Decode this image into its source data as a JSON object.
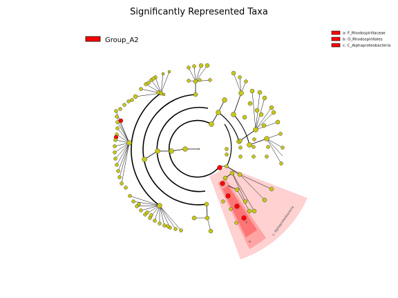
{
  "title": "Significantly Represented Taxa",
  "legend": {
    "group_label": "Group_A2",
    "group_color": "#ff0000"
  },
  "highlight_key": [
    {
      "letter": "a",
      "text": "a: F_Rhodospirillaceae"
    },
    {
      "letter": "b",
      "text": "b: O_Rhodospirillales"
    },
    {
      "letter": "c",
      "text": "c: C_Alphaproteobacteria"
    }
  ],
  "clade_labels": {
    "c": "c: Alphaproteobacteria",
    "b": "b",
    "a": "a"
  },
  "colors": {
    "node_default": "#c8c812",
    "node_enriched": "#ff0000",
    "shade_outer": "#ffcccc",
    "shade_mid": "#ff9f9f",
    "shade_inner": "#ff6f6f"
  }
}
